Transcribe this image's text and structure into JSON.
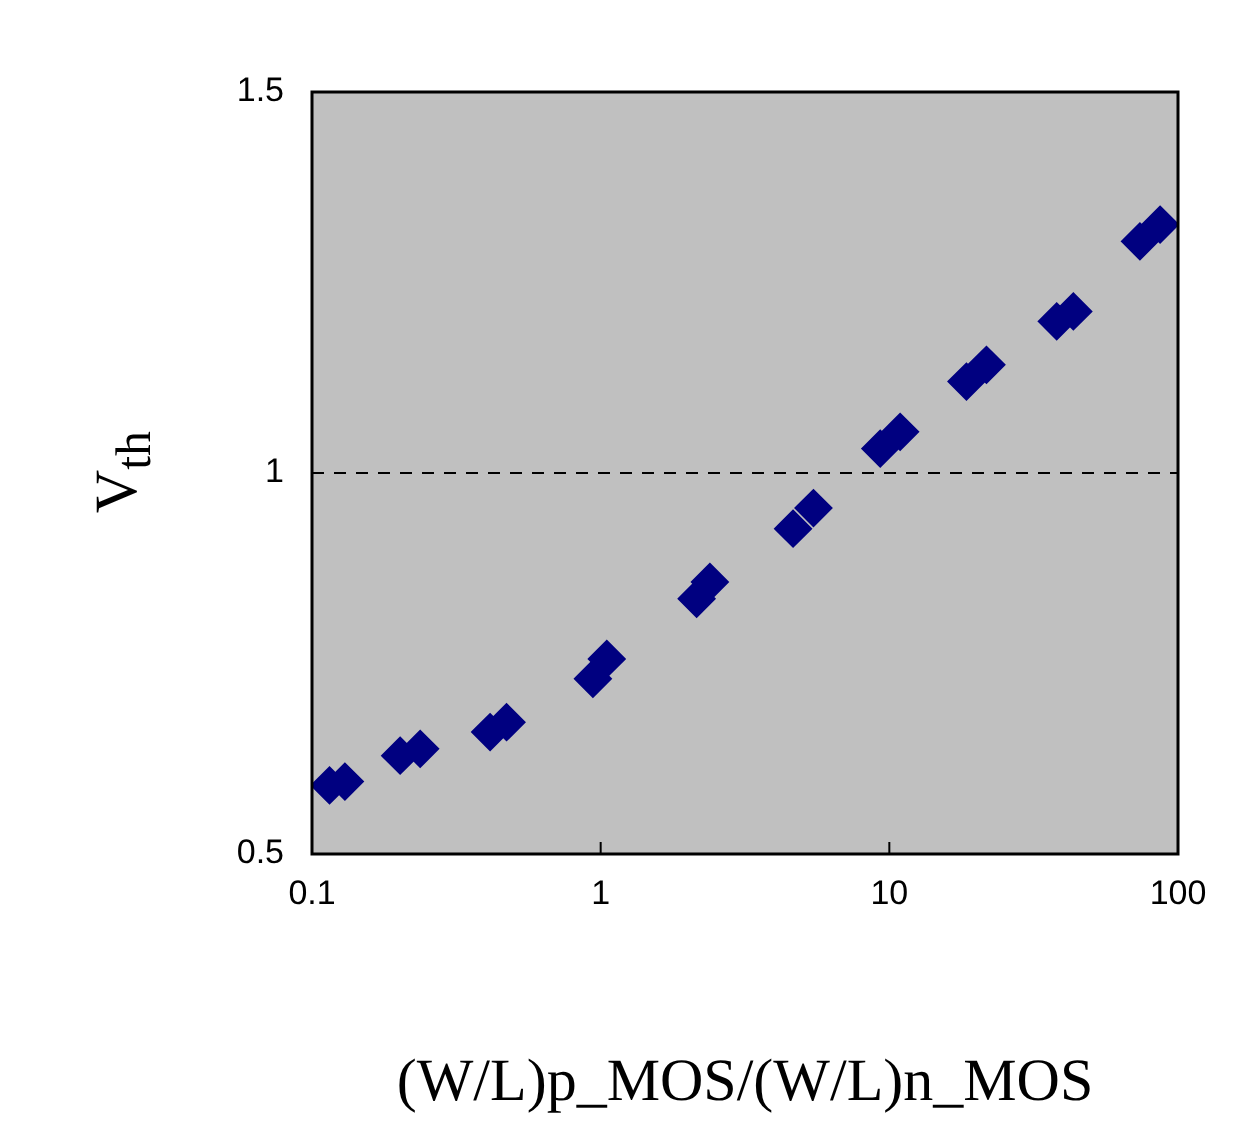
{
  "chart_data": {
    "type": "scatter",
    "xlabel": "(W/L)p_MOS/(W/L)n_MOS",
    "ylabel": "V$_{th}$",
    "log": "x",
    "grid": "y",
    "marker": "diamond",
    "legend": false,
    "xlim": [
      0.1,
      100
    ],
    "xticks": [
      0.1,
      1,
      10,
      100
    ],
    "ylim": [
      0.5,
      1.5
    ],
    "yticks": [
      0.5,
      1,
      1.5
    ],
    "series": [
      {
        "color": "#000080",
        "x": [
          0.115,
          0.13,
          0.202,
          0.237,
          0.414,
          0.472,
          0.94,
          1.05,
          2.15,
          2.39,
          4.64,
          5.46,
          9.3,
          10.9,
          18.5,
          21.7,
          38,
          43.4,
          73.8,
          86.7
        ],
        "values": [
          0.59,
          0.595,
          0.629,
          0.638,
          0.66,
          0.673,
          0.73,
          0.756,
          0.835,
          0.857,
          0.927,
          0.954,
          1.032,
          1.054,
          1.12,
          1.142,
          1.199,
          1.212,
          1.304,
          1.326
        ]
      }
    ]
  }
}
